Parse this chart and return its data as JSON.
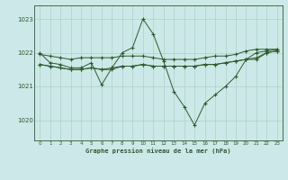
{
  "title": "Graphe pression niveau de la mer (hPa)",
  "bg_color": "#cde8e8",
  "grid_color": "#a8d4c8",
  "line_color": "#2d5a2d",
  "xlim": [
    -0.5,
    23.5
  ],
  "ylim": [
    1019.4,
    1023.4
  ],
  "yticks": [
    1020,
    1021,
    1022,
    1023
  ],
  "xticks": [
    0,
    1,
    2,
    3,
    4,
    5,
    6,
    7,
    8,
    9,
    10,
    11,
    12,
    13,
    14,
    15,
    16,
    17,
    18,
    19,
    20,
    21,
    22,
    23
  ],
  "line1_x": [
    0,
    1,
    2,
    3,
    4,
    5,
    6,
    7,
    8,
    9,
    10,
    11,
    12,
    13,
    14,
    15,
    16,
    17,
    18,
    19,
    20,
    21,
    22,
    23
  ],
  "line1_y": [
    1021.95,
    1021.9,
    1021.85,
    1021.8,
    1021.85,
    1021.85,
    1021.85,
    1021.85,
    1021.9,
    1021.9,
    1021.9,
    1021.85,
    1021.8,
    1021.8,
    1021.8,
    1021.8,
    1021.85,
    1021.9,
    1021.9,
    1021.95,
    1022.05,
    1022.1,
    1022.1,
    1022.1
  ],
  "line2_x": [
    0,
    1,
    2,
    3,
    4,
    5,
    6,
    7,
    8,
    9,
    10,
    11,
    12,
    13,
    14,
    15,
    16,
    17,
    18,
    19,
    20,
    21,
    22,
    23
  ],
  "line2_y": [
    1022.0,
    1021.7,
    1021.65,
    1021.55,
    1021.55,
    1021.7,
    1021.05,
    1021.55,
    1022.0,
    1022.15,
    1023.0,
    1022.55,
    1021.75,
    1020.85,
    1020.4,
    1019.85,
    1020.5,
    1020.75,
    1021.0,
    1021.3,
    1021.8,
    1022.0,
    1022.05,
    1022.1
  ],
  "line3_x": [
    0,
    1,
    2,
    3,
    4,
    5,
    6,
    7,
    8,
    9,
    10,
    11,
    12,
    13,
    14,
    15,
    16,
    17,
    18,
    19,
    20,
    21,
    22,
    23
  ],
  "line3_y": [
    1021.65,
    1021.6,
    1021.55,
    1021.5,
    1021.5,
    1021.55,
    1021.5,
    1021.5,
    1021.6,
    1021.6,
    1021.65,
    1021.6,
    1021.6,
    1021.6,
    1021.6,
    1021.6,
    1021.65,
    1021.65,
    1021.7,
    1021.75,
    1021.8,
    1021.8,
    1022.0,
    1022.05
  ],
  "line4_x": [
    0,
    1,
    2,
    3,
    4,
    5,
    6,
    7,
    8,
    9,
    10,
    11,
    12,
    13,
    14,
    15,
    16,
    17,
    18,
    19,
    20,
    21,
    22,
    23
  ],
  "line4_y": [
    1021.65,
    1021.6,
    1021.55,
    1021.5,
    1021.5,
    1021.55,
    1021.5,
    1021.55,
    1021.6,
    1021.6,
    1021.65,
    1021.6,
    1021.6,
    1021.6,
    1021.6,
    1021.6,
    1021.65,
    1021.65,
    1021.7,
    1021.75,
    1021.8,
    1021.85,
    1022.0,
    1022.05
  ]
}
